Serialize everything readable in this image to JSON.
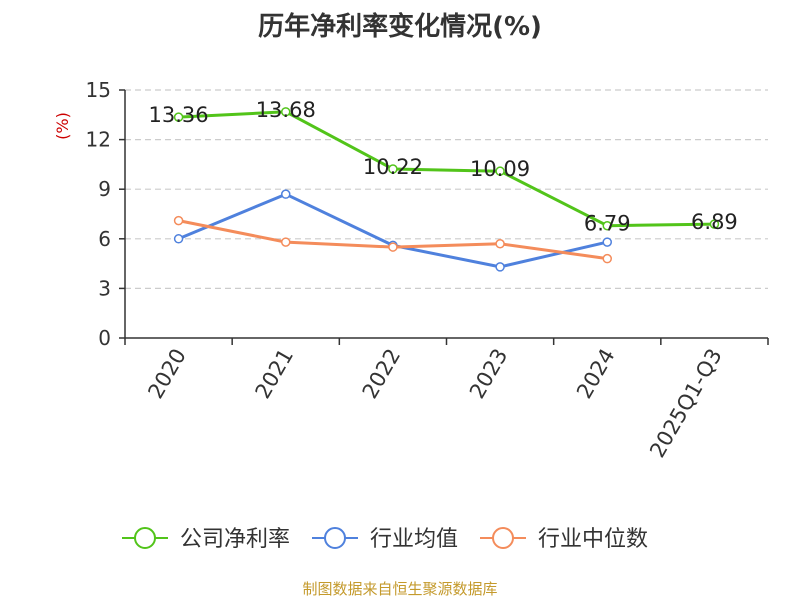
{
  "chart_data": {
    "type": "line",
    "title": "历年净利率变化情况(%)",
    "ylabel": "(%)",
    "xlabel": "",
    "categories": [
      "2020",
      "2021",
      "2022",
      "2023",
      "2024",
      "2025Q1-Q3"
    ],
    "yticks": [
      "0",
      "3",
      "6",
      "9",
      "12",
      "15"
    ],
    "ylim": [
      0,
      15
    ],
    "grid": true,
    "legend": "bottom",
    "series": [
      {
        "name": "公司净利率",
        "color": "#52c41a",
        "values": [
          13.36,
          13.68,
          10.22,
          10.09,
          6.79,
          6.89
        ],
        "labels": [
          "13.36",
          "13.68",
          "10.22",
          "10.09",
          "6.79",
          "6.89"
        ]
      },
      {
        "name": "行业均值",
        "color": "#4f81dd",
        "values": [
          6.0,
          8.7,
          5.6,
          4.3,
          5.8,
          null
        ]
      },
      {
        "name": "行业中位数",
        "color": "#f48c5b",
        "values": [
          7.1,
          5.8,
          5.5,
          5.7,
          4.8,
          null
        ]
      }
    ]
  },
  "footer": {
    "source": "制图数据来自恒生聚源数据库",
    "source_color": "#c49a2c"
  },
  "colors": {
    "axis": "#333333",
    "grid": "#cccccc",
    "ylabel": "#cc0000"
  }
}
